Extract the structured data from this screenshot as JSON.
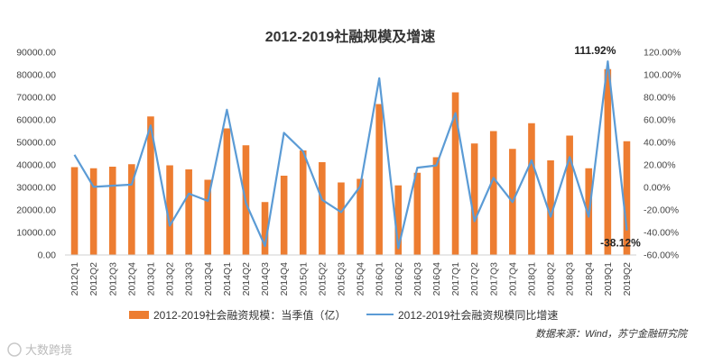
{
  "chart_data": {
    "type": "bar",
    "title": "2012-2019社融规模及增速",
    "categories": [
      "2012Q1",
      "2012Q2",
      "2012Q3",
      "2012Q4",
      "2013Q1",
      "2013Q2",
      "2013Q3",
      "2013Q4",
      "2014Q1",
      "2014Q2",
      "2014Q3",
      "2014Q4",
      "2015Q1",
      "2015Q2",
      "2015Q3",
      "2015Q4",
      "2016Q1",
      "2016Q2",
      "2016Q3",
      "2016Q4",
      "2017Q1",
      "2017Q2",
      "2017Q3",
      "2017Q4",
      "2018Q1",
      "2018Q2",
      "2018Q3",
      "2018Q4",
      "2019Q1",
      "2019Q2"
    ],
    "series": [
      {
        "name": "2012-2019社会融资规模：当季值（亿）",
        "type": "bar",
        "axis": "left",
        "color": "#ED7D31",
        "values": [
          39000,
          38500,
          39200,
          40300,
          61500,
          39800,
          38000,
          33400,
          56200,
          48700,
          23500,
          35200,
          46400,
          41200,
          32200,
          33800,
          67000,
          30900,
          36500,
          43400,
          72200,
          49500,
          55000,
          47100,
          58500,
          42000,
          53000,
          38500,
          82500,
          50500
        ]
      },
      {
        "name": "2012-2019社会融资规模同比增速",
        "type": "line",
        "axis": "right",
        "color": "#5B9BD5",
        "values": [
          29,
          0.5,
          1.5,
          2.5,
          55,
          -34,
          -5.5,
          -12,
          69,
          -14,
          -52,
          48.5,
          32,
          -11,
          -22,
          1,
          97,
          -54,
          17.5,
          19.5,
          66,
          -30,
          8.5,
          -13,
          24,
          -26,
          27,
          -26,
          111.92,
          -38.12
        ]
      }
    ],
    "y_left": {
      "min": 0,
      "max": 90000,
      "step": 10000,
      "tick_labels": [
        "0.00",
        "10000.00",
        "20000.00",
        "30000.00",
        "40000.00",
        "50000.00",
        "60000.00",
        "70000.00",
        "80000.00",
        "90000.00"
      ]
    },
    "y_right": {
      "min": -60,
      "max": 120,
      "step": 20,
      "tick_labels": [
        "-60.00%",
        "-40.00%",
        "-20.00%",
        "0.00%",
        "20.00%",
        "40.00%",
        "60.00%",
        "80.00%",
        "100.00%",
        "120.00%"
      ]
    },
    "annotations": [
      {
        "index": 28,
        "text": "111.92%"
      },
      {
        "index": 29,
        "text": "-38.12%"
      }
    ],
    "legend_placement": "bottom",
    "grid": false
  },
  "source_note": "数据来源：Wind，苏宁金融研究院",
  "watermark": "大数跨境"
}
